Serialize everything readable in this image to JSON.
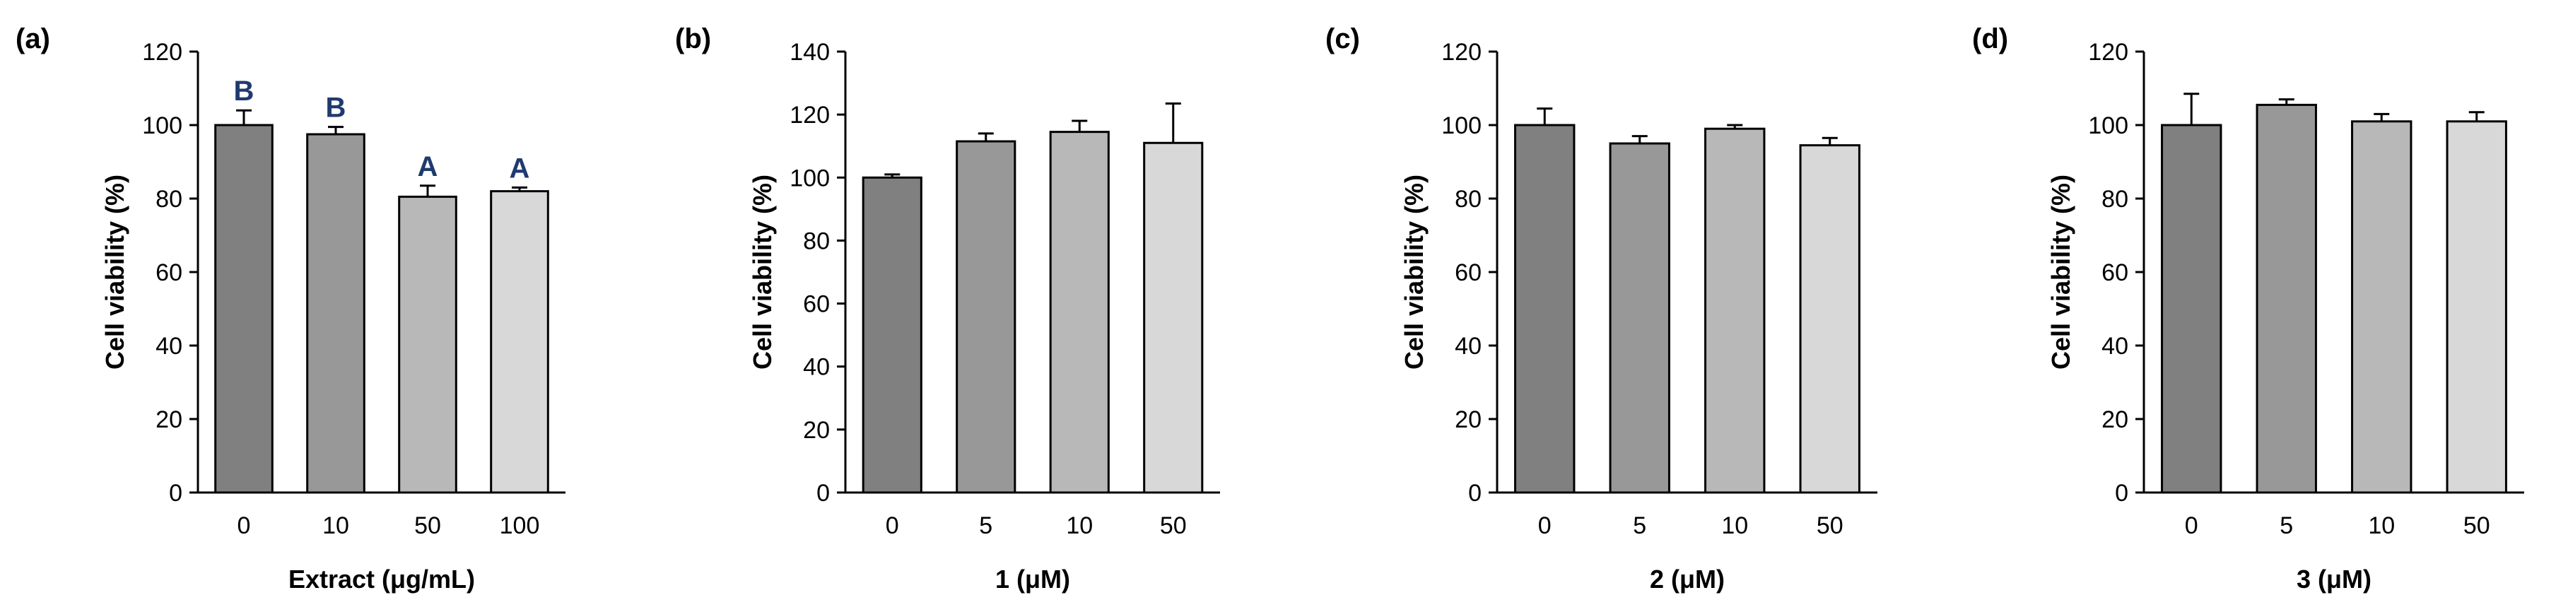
{
  "chart_data": [
    {
      "type": "bar",
      "panel_label": "(a)",
      "categories": [
        "0",
        "10",
        "50",
        "100"
      ],
      "values": [
        100,
        97.5,
        80.5,
        82
      ],
      "errors": [
        4,
        2,
        3,
        1
      ],
      "annotations": [
        "B",
        "B",
        "A",
        "A"
      ],
      "colors": [
        "#808080",
        "#989898",
        "#b8b8b8",
        "#d8d8d8"
      ],
      "ylabel": "Cell viability (%)",
      "xlabel": "Extract (μg/mL)",
      "ylim": [
        0,
        120
      ],
      "yticks": [
        "0",
        "20",
        "40",
        "60",
        "80",
        "100",
        "120"
      ],
      "grid": false
    },
    {
      "type": "bar",
      "panel_label": "(b)",
      "categories": [
        "0",
        "5",
        "10",
        "50"
      ],
      "values": [
        100,
        111.5,
        114.5,
        111
      ],
      "errors": [
        1,
        2.5,
        3.5,
        12.5
      ],
      "annotations": [],
      "colors": [
        "#808080",
        "#989898",
        "#b8b8b8",
        "#d8d8d8"
      ],
      "ylabel": "Cell viability (%)",
      "xlabel": "1 (μM)",
      "ylim": [
        0,
        140
      ],
      "yticks": [
        "0",
        "20",
        "40",
        "60",
        "80",
        "100",
        "120",
        "140"
      ],
      "grid": false
    },
    {
      "type": "bar",
      "panel_label": "(c)",
      "categories": [
        "0",
        "5",
        "10",
        "50"
      ],
      "values": [
        100,
        95,
        99,
        94.5
      ],
      "errors": [
        4.5,
        2,
        1,
        2
      ],
      "annotations": [],
      "colors": [
        "#808080",
        "#989898",
        "#b8b8b8",
        "#d8d8d8"
      ],
      "ylabel": "Cell viability (%)",
      "xlabel": "2 (μM)",
      "ylim": [
        0,
        120
      ],
      "yticks": [
        "0",
        "20",
        "40",
        "60",
        "80",
        "100",
        "120"
      ],
      "grid": false
    },
    {
      "type": "bar",
      "panel_label": "(d)",
      "categories": [
        "0",
        "5",
        "10",
        "50"
      ],
      "values": [
        100,
        105.5,
        101,
        101
      ],
      "errors": [
        8.5,
        1.5,
        2,
        2.5
      ],
      "annotations": [],
      "colors": [
        "#808080",
        "#989898",
        "#b8b8b8",
        "#d8d8d8"
      ],
      "ylabel": "Cell viability (%)",
      "xlabel": "3 (μM)",
      "ylim": [
        0,
        120
      ],
      "yticks": [
        "0",
        "20",
        "40",
        "60",
        "80",
        "100",
        "120"
      ],
      "grid": false
    }
  ],
  "style": {
    "axis_color": "#000000",
    "annotation_color": "#1f3a6e",
    "bar_outline": "#000000"
  }
}
